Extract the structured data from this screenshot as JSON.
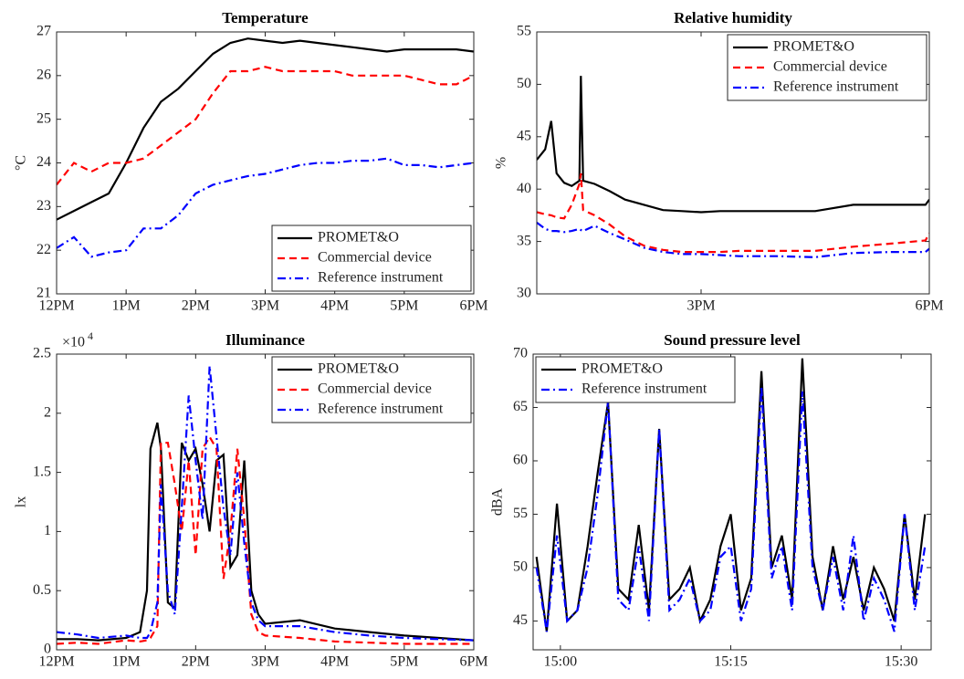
{
  "chart_data": [
    {
      "type": "line",
      "title": "Temperature",
      "ylabel": "°C",
      "x": [
        12,
        12.25,
        12.5,
        12.75,
        13,
        13.25,
        13.5,
        13.75,
        14,
        14.25,
        14.5,
        14.75,
        15,
        15.25,
        15.5,
        15.75,
        16,
        16.25,
        16.5,
        16.75,
        17,
        17.25,
        17.5,
        17.75,
        18
      ],
      "xlim": [
        12,
        18
      ],
      "xticks": [
        {
          "value": 12,
          "label": "12PM"
        },
        {
          "value": 13,
          "label": "1PM"
        },
        {
          "value": 14,
          "label": "2PM"
        },
        {
          "value": 15,
          "label": "3PM"
        },
        {
          "value": 16,
          "label": "4PM"
        },
        {
          "value": 17,
          "label": "5PM"
        },
        {
          "value": 18,
          "label": "6PM"
        }
      ],
      "ylim": [
        21,
        27
      ],
      "yticks": [
        21,
        22,
        23,
        24,
        25,
        26,
        27
      ],
      "legend": "lower right",
      "series": [
        {
          "name": "PROMET&O",
          "color": "#000000",
          "dash": "solid",
          "values": [
            22.7,
            22.9,
            23.1,
            23.3,
            24.0,
            24.8,
            25.4,
            25.7,
            26.1,
            26.5,
            26.75,
            26.85,
            26.8,
            26.75,
            26.8,
            26.75,
            26.7,
            26.65,
            26.6,
            26.55,
            26.6,
            26.6,
            26.6,
            26.6,
            26.55
          ]
        },
        {
          "name": "Commercial device",
          "color": "#ff0000",
          "dash": "dashed",
          "values": [
            23.5,
            24.0,
            23.8,
            24.0,
            24.0,
            24.1,
            24.4,
            24.7,
            25.0,
            25.6,
            26.1,
            26.1,
            26.2,
            26.1,
            26.1,
            26.1,
            26.1,
            26.0,
            26.0,
            26.0,
            26.0,
            25.9,
            25.8,
            25.8,
            26.0
          ]
        },
        {
          "name": "Reference instrument",
          "color": "#0000ff",
          "dash": "dashdot",
          "values": [
            22.05,
            22.3,
            21.85,
            21.95,
            22.0,
            22.5,
            22.5,
            22.8,
            23.3,
            23.5,
            23.6,
            23.7,
            23.75,
            23.85,
            23.95,
            24.0,
            24.0,
            24.05,
            24.05,
            24.1,
            23.95,
            23.95,
            23.9,
            23.95,
            24.0
          ]
        }
      ]
    },
    {
      "type": "line",
      "title": "Relative humidity",
      "ylabel": "%",
      "x": [
        12.84,
        12.95,
        13.03,
        13.1,
        13.2,
        13.3,
        13.4,
        13.42,
        13.45,
        13.6,
        13.8,
        14,
        14.25,
        14.5,
        14.75,
        15,
        15.25,
        15.5,
        16,
        16.5,
        17,
        17.5,
        17.95,
        18
      ],
      "xlim": [
        12.84,
        18
      ],
      "xticks": [
        {
          "value": 15,
          "label": "3PM"
        },
        {
          "value": 18,
          "label": "6PM"
        }
      ],
      "ylim": [
        30,
        55
      ],
      "yticks": [
        30,
        35,
        40,
        45,
        50,
        55
      ],
      "legend": "upper right",
      "series": [
        {
          "name": "PROMET&O",
          "color": "#000000",
          "dash": "solid",
          "values": [
            42.8,
            43.8,
            46.5,
            41.5,
            40.6,
            40.3,
            40.8,
            50.8,
            40.8,
            40.5,
            39.8,
            39,
            38.5,
            38,
            37.9,
            37.8,
            37.9,
            37.9,
            37.9,
            37.9,
            38.5,
            38.5,
            38.5,
            39
          ]
        },
        {
          "name": "Commercial device",
          "color": "#ff0000",
          "dash": "dashed",
          "values": [
            37.8,
            37.6,
            37.5,
            37.3,
            37.2,
            38.5,
            40.5,
            41.5,
            38.0,
            37.5,
            36.6,
            35.5,
            34.6,
            34.2,
            34.0,
            34.0,
            34.0,
            34.1,
            34.1,
            34.1,
            34.5,
            34.8,
            35.1,
            35.8
          ]
        },
        {
          "name": "Reference instrument",
          "color": "#0000ff",
          "dash": "dashdot",
          "values": [
            36.8,
            36.2,
            36.0,
            36.0,
            35.9,
            36.0,
            36.2,
            36.1,
            36.0,
            36.5,
            35.8,
            35.2,
            34.4,
            34.0,
            33.8,
            33.8,
            33.7,
            33.6,
            33.6,
            33.5,
            33.9,
            34.0,
            34.0,
            34.3
          ]
        }
      ]
    },
    {
      "type": "line",
      "title": "Illuminance",
      "ylabel": "lx",
      "y_multiplier": "×10",
      "y_multiplier_exponent": "4",
      "x": [
        12,
        12.3,
        12.6,
        13,
        13.2,
        13.3,
        13.35,
        13.45,
        13.5,
        13.6,
        13.7,
        13.8,
        13.9,
        14,
        14.1,
        14.2,
        14.3,
        14.4,
        14.5,
        14.6,
        14.7,
        14.8,
        14.9,
        15,
        15.5,
        16,
        16.5,
        17,
        17.5,
        18
      ],
      "xlim": [
        12,
        18
      ],
      "xticks": [
        {
          "value": 12,
          "label": "12PM"
        },
        {
          "value": 13,
          "label": "1PM"
        },
        {
          "value": 14,
          "label": "2PM"
        },
        {
          "value": 15,
          "label": "3PM"
        },
        {
          "value": 16,
          "label": "4PM"
        },
        {
          "value": 17,
          "label": "5PM"
        },
        {
          "value": 18,
          "label": "6PM"
        }
      ],
      "ylim": [
        0,
        2.5
      ],
      "yticks": [
        0,
        0.5,
        1,
        1.5,
        2,
        2.5
      ],
      "legend": "upper right",
      "series": [
        {
          "name": "PROMET&O",
          "color": "#000000",
          "dash": "solid",
          "values": [
            0.09,
            0.09,
            0.08,
            0.1,
            0.15,
            0.5,
            1.7,
            1.92,
            1.7,
            0.4,
            0.35,
            1.75,
            1.6,
            1.7,
            1.4,
            1.0,
            1.6,
            1.65,
            0.7,
            0.8,
            1.6,
            0.5,
            0.3,
            0.22,
            0.25,
            0.18,
            0.15,
            0.12,
            0.1,
            0.08
          ]
        },
        {
          "name": "Commercial device",
          "color": "#ff0000",
          "dash": "dashed",
          "values": [
            0.05,
            0.06,
            0.05,
            0.08,
            0.07,
            0.08,
            0.1,
            0.2,
            1.75,
            1.75,
            1.4,
            1.0,
            1.6,
            0.8,
            1.7,
            1.8,
            1.7,
            0.6,
            1.0,
            1.7,
            1.1,
            0.3,
            0.15,
            0.12,
            0.1,
            0.07,
            0.06,
            0.05,
            0.05,
            0.05
          ]
        },
        {
          "name": "Reference instrument",
          "color": "#0000ff",
          "dash": "dashdot",
          "values": [
            0.15,
            0.13,
            0.1,
            0.12,
            0.1,
            0.1,
            0.15,
            0.4,
            1.4,
            0.5,
            0.3,
            1.2,
            2.15,
            1.6,
            1.1,
            2.4,
            1.8,
            1.2,
            0.8,
            1.5,
            0.9,
            0.4,
            0.25,
            0.2,
            0.2,
            0.15,
            0.12,
            0.1,
            0.09,
            0.08
          ]
        }
      ]
    },
    {
      "type": "line",
      "title": "Sound pressure level",
      "ylabel": "dBA",
      "x": [
        14.965,
        14.98,
        14.995,
        15.01,
        15.025,
        15.04,
        15.055,
        15.07,
        15.085,
        15.1,
        15.115,
        15.13,
        15.145,
        15.16,
        15.175,
        15.19,
        15.205,
        15.22,
        15.235,
        15.25,
        15.265,
        15.28,
        15.295,
        15.31,
        15.325,
        15.34,
        15.355,
        15.37,
        15.385,
        15.4,
        15.415,
        15.43,
        15.445,
        15.46,
        15.475,
        15.49,
        15.505,
        15.52,
        15.535
      ],
      "xlim": [
        14.96,
        15.544
      ],
      "xticks": [
        {
          "value": 15,
          "label": "15:00"
        },
        {
          "value": 15.25,
          "label": "15:15"
        },
        {
          "value": 15.5,
          "label": "15:30"
        }
      ],
      "ylim": [
        42.3,
        70
      ],
      "yticks": [
        45,
        50,
        55,
        60,
        65,
        70
      ],
      "legend": "upper left",
      "series": [
        {
          "name": "PROMET&O",
          "color": "#000000",
          "dash": "solid",
          "values": [
            51,
            44,
            56,
            45,
            46,
            52,
            59,
            65.5,
            48,
            47,
            54,
            46,
            63,
            47,
            48,
            50,
            45,
            47,
            52,
            55,
            46,
            49,
            68.4,
            50,
            53,
            47,
            69.6,
            51,
            46,
            52,
            47,
            51,
            46,
            50,
            48,
            45,
            55,
            47,
            55
          ]
        },
        {
          "name": "Reference instrument",
          "color": "#0000ff",
          "dash": "dashdot",
          "values": [
            50,
            44,
            53,
            45,
            46,
            50,
            57,
            65.6,
            47,
            46,
            52,
            45,
            63,
            46,
            47,
            49,
            45,
            46,
            51,
            52,
            45,
            48,
            67,
            49,
            52,
            46,
            66.5,
            50,
            46,
            51,
            46,
            53,
            45,
            49,
            47,
            44,
            55,
            46,
            52
          ]
        }
      ]
    }
  ]
}
